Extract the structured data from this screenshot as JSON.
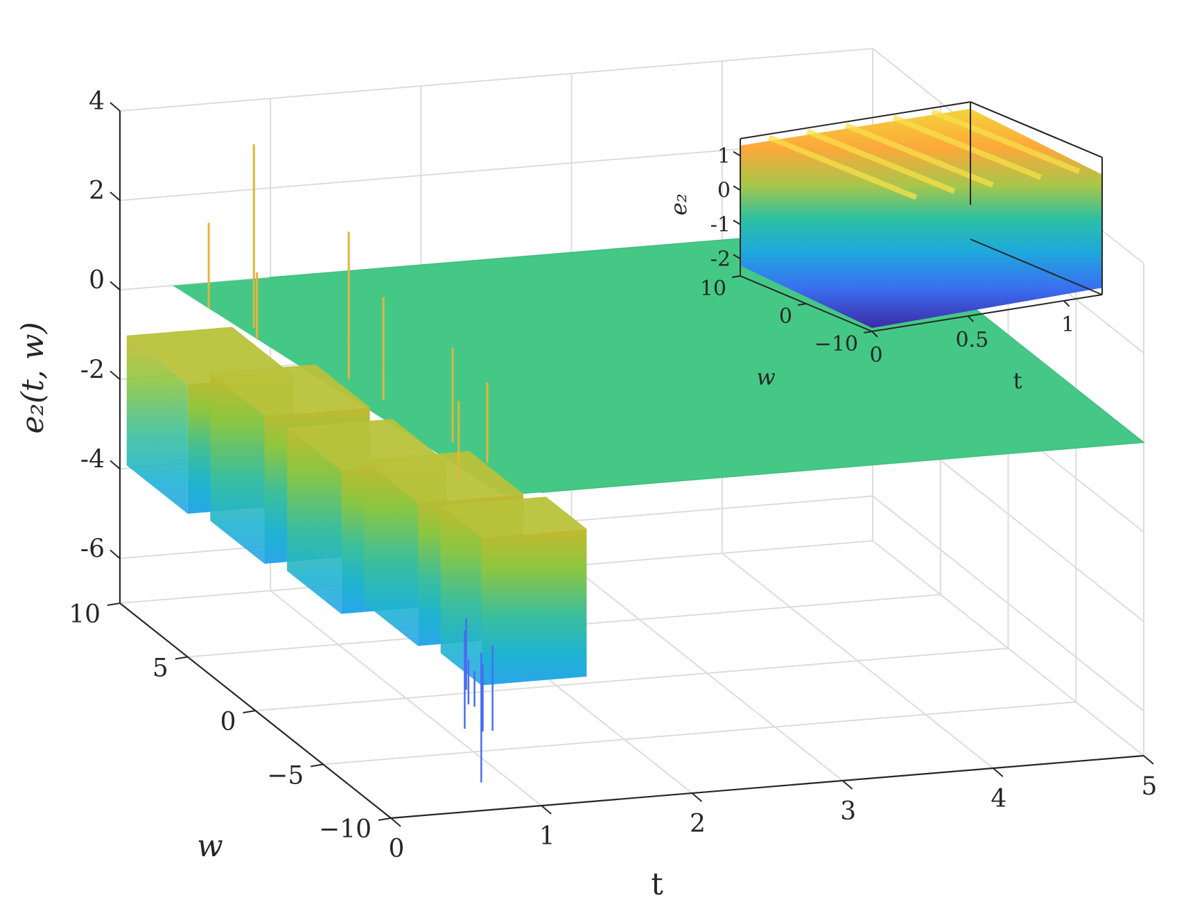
{
  "chart_data": [
    {
      "type": "surface",
      "zlabel": "e₂(t, w)",
      "xlabel": "t",
      "ylabel": "w",
      "xlim": [
        0,
        5
      ],
      "ylim": [
        -10,
        10
      ],
      "zlim": [
        -7,
        4
      ],
      "xticks": [
        "0",
        "1",
        "2",
        "3",
        "4",
        "5"
      ],
      "yticks": [
        "−10",
        "−5",
        "0",
        "5",
        "10"
      ],
      "zticks": [
        "4",
        "2",
        "0",
        "-2",
        "-4",
        "-6"
      ],
      "grid": true,
      "colormap": "parula",
      "ridges": [
        {
          "t_start": 0.0,
          "t_end": 0.15,
          "w_start": 9.5,
          "w_end": 5.0,
          "top": -0.9,
          "bottom": -3.8
        },
        {
          "t_start": 0.15,
          "t_end": 0.3,
          "w_start": 5.0,
          "w_end": 1.0,
          "top": -0.7,
          "bottom": -4.0
        },
        {
          "t_start": 0.3,
          "t_end": 0.45,
          "w_start": 1.0,
          "w_end": -3.0,
          "top": -1.0,
          "bottom": -4.2
        },
        {
          "t_start": 0.45,
          "t_end": 0.6,
          "w_start": -3.0,
          "w_end": -7.0,
          "top": -0.8,
          "bottom": -4.0
        },
        {
          "t_start": 0.6,
          "t_end": 0.75,
          "w_start": -7.0,
          "w_end": -10.0,
          "top": -0.9,
          "bottom": -4.2
        }
      ],
      "steady_state": {
        "t_from": 1.0,
        "t_to": 5.0,
        "value": 0.0
      },
      "spikes": {
        "max": 3.8,
        "min": -6.9
      }
    },
    {
      "type": "surface",
      "inset": true,
      "zlabel": "e₂",
      "xlabel": "t",
      "ylabel": "w",
      "xlim": [
        0,
        1.2
      ],
      "ylim": [
        -10,
        10
      ],
      "zlim": [
        -2.5,
        1.5
      ],
      "xticks": [
        "0",
        "0.5",
        "1"
      ],
      "yticks": [
        "10",
        "0",
        "−10"
      ],
      "zticks": [
        "1",
        "0",
        "-1",
        "-2"
      ],
      "colormap": "parula"
    }
  ]
}
